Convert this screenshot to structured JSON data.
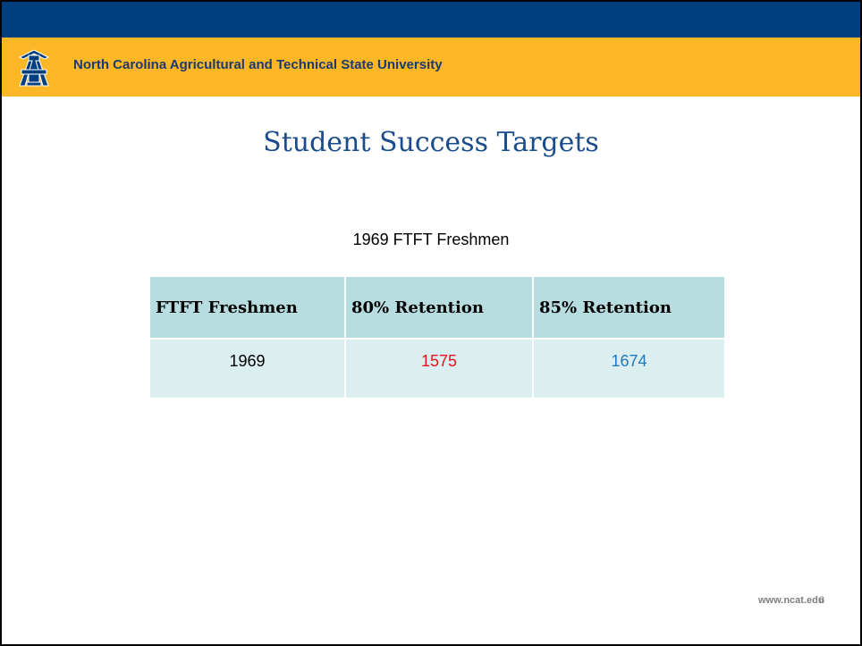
{
  "header": {
    "title": "North Carolina Agricultural and Technical State University"
  },
  "slide": {
    "title": "Student Success Targets",
    "subtitle": "1969 FTFT Freshmen"
  },
  "table": {
    "header": [
      "FTFT Freshmen",
      "80% Retention",
      "85% Retention"
    ],
    "rows": [
      [
        1969,
        1575,
        1674
      ]
    ]
  },
  "footer": {
    "url": "www.ncat.edu",
    "page_number": 6
  }
}
